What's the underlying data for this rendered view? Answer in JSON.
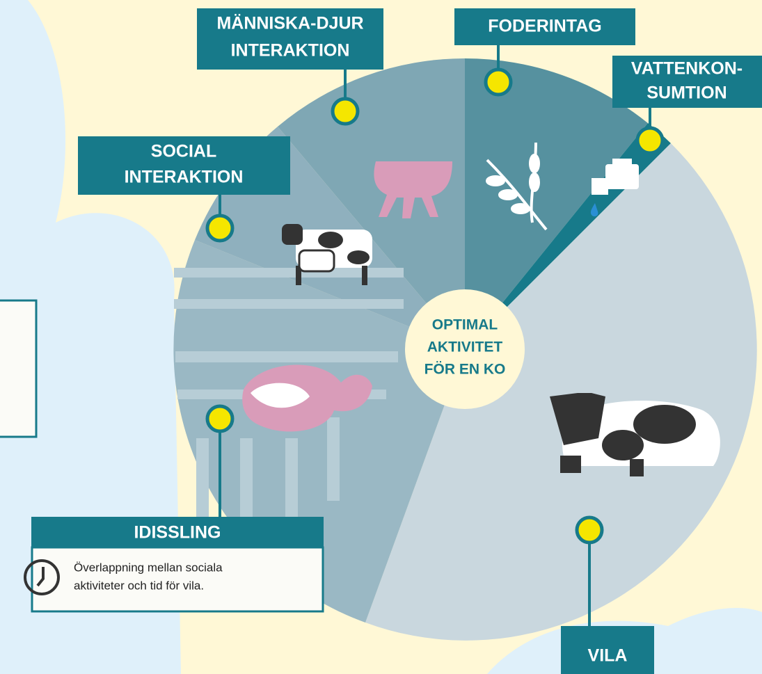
{
  "center_title": [
    "OPTIMAL",
    "AKTIVITET",
    "FÖR EN KO"
  ],
  "segments": [
    {
      "label": [
        "MÄNNISKA-DJUR",
        "INTERAKTION"
      ]
    },
    {
      "label": [
        "FODERINTAG"
      ]
    },
    {
      "label": [
        "VATTENKON-",
        "SUMTION"
      ]
    },
    {
      "label": [
        "SOCIAL",
        "INTERAKTION"
      ]
    },
    {
      "label": [
        "VILA"
      ]
    },
    {
      "label": [
        "IDISSLING"
      ],
      "note": [
        "Överlappning mellan sociala",
        "aktiviteter och tid för vila."
      ]
    }
  ]
}
